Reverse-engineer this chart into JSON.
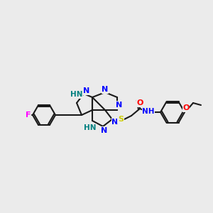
{
  "bg_color": "#ebebeb",
  "bond_color": "#1a1a1a",
  "bond_lw": 1.5,
  "atom_colors": {
    "N": "#0000ff",
    "NH": "#008080",
    "F": "#ff00ff",
    "S": "#cccc00",
    "O": "#ff0000",
    "C": "#1a1a1a"
  },
  "font_size": 7.5
}
